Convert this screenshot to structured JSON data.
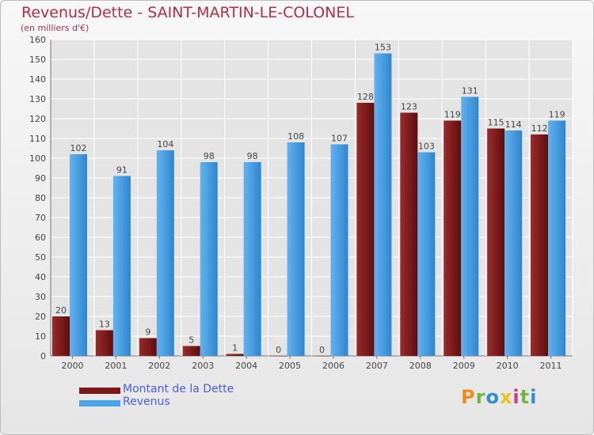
{
  "header": {
    "title": "Revenus/Dette - SAINT-MARTIN-LE-COLONEL",
    "subtitle": "(en milliers d'€)"
  },
  "legend": {
    "items": [
      {
        "label": "Montant de la Dette",
        "color": "#7a1717"
      },
      {
        "label": "Revenus",
        "color": "#4da3e6"
      }
    ]
  },
  "logo": {
    "letters": [
      "P",
      "r",
      "o",
      "x",
      "i",
      "t",
      "i"
    ],
    "colors": [
      "#f08a1c",
      "#6fb83a",
      "#2a8fd8",
      "#e8c318",
      "#d03a8a",
      "#6fb83a",
      "#2a8fd8"
    ]
  },
  "chart_data": {
    "type": "bar",
    "categories": [
      "2000",
      "2001",
      "2002",
      "2003",
      "2004",
      "2005",
      "2006",
      "2007",
      "2008",
      "2009",
      "2010",
      "2011"
    ],
    "series": [
      {
        "name": "Montant de la Dette",
        "color": "#7a1717",
        "values": [
          20,
          13,
          9,
          5,
          1,
          0,
          0,
          128,
          123,
          119,
          115,
          112
        ]
      },
      {
        "name": "Revenus",
        "color": "#4da3e6",
        "values": [
          102,
          91,
          104,
          98,
          98,
          108,
          107,
          153,
          103,
          131,
          114,
          119
        ]
      }
    ],
    "title": "Revenus/Dette - SAINT-MARTIN-LE-COLONEL",
    "ylabel": "(en milliers d'€)",
    "ylim": [
      0,
      160
    ],
    "yticks": [
      0,
      10,
      20,
      30,
      40,
      50,
      60,
      70,
      80,
      90,
      100,
      110,
      120,
      130,
      140,
      150,
      160
    ],
    "grid": true,
    "legend_position": "bottom-left"
  }
}
